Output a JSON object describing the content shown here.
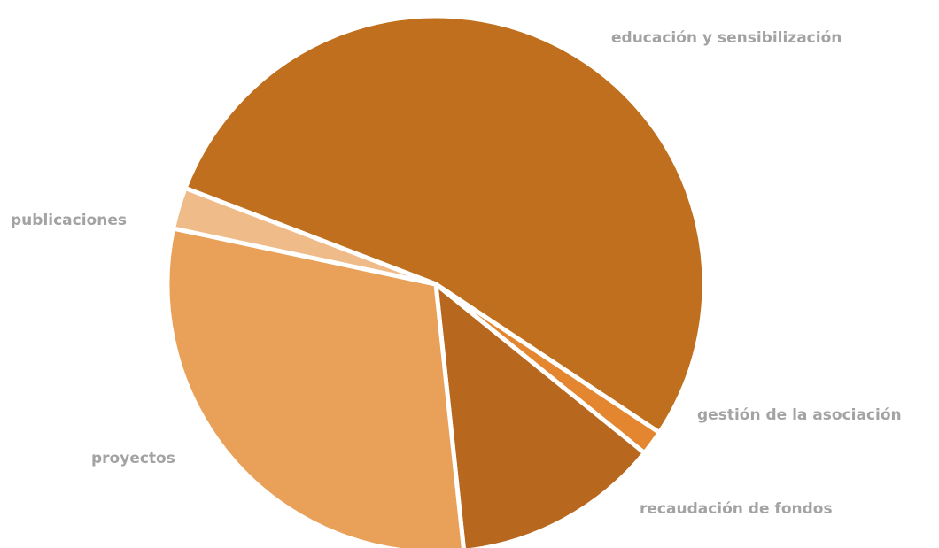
{
  "chart_data": {
    "type": "pie",
    "title": "",
    "slices": [
      {
        "label": "educación y sensibilización",
        "value": 53.5,
        "color": "#bf6f1d"
      },
      {
        "label": "gestión de la asociación",
        "value": 1.5,
        "color": "#e4862f"
      },
      {
        "label": "recaudación de fondos",
        "value": 12.5,
        "color": "#b8681e"
      },
      {
        "label": "proyectos",
        "value": 30.0,
        "color": "#e9a15a"
      },
      {
        "label": "publicaciones",
        "value": 2.5,
        "color": "#efbb88"
      }
    ],
    "labels_shown": true,
    "legend": "none"
  }
}
